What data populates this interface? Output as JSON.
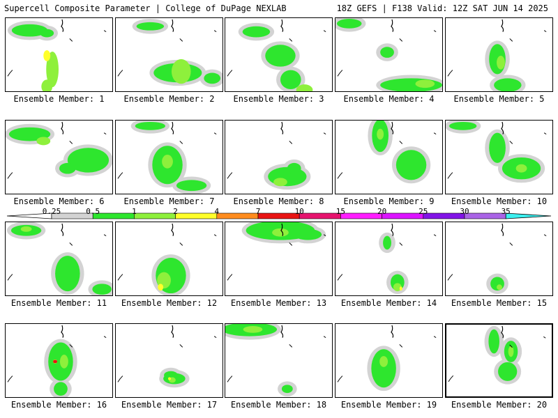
{
  "header": {
    "title_left": "Supercell Composite Parameter | College of DuPage NEXLAB",
    "title_right": "18Z GEFS | F138 Valid: 12Z SAT JUN 14 2025"
  },
  "panel_label_prefix": "Ensemble Member:",
  "members": [
    {
      "label": "Ensemble Member: 1"
    },
    {
      "label": "Ensemble Member: 2"
    },
    {
      "label": "Ensemble Member: 3"
    },
    {
      "label": "Ensemble Member: 4"
    },
    {
      "label": "Ensemble Member: 5"
    },
    {
      "label": "Ensemble Member: 6"
    },
    {
      "label": "Ensemble Member: 7"
    },
    {
      "label": "Ensemble Member: 8"
    },
    {
      "label": "Ensemble Member: 9"
    },
    {
      "label": "Ensemble Member: 10"
    },
    {
      "label": "Ensemble Member: 11"
    },
    {
      "label": "Ensemble Member: 12"
    },
    {
      "label": "Ensemble Member: 13"
    },
    {
      "label": "Ensemble Member: 14"
    },
    {
      "label": "Ensemble Member: 15"
    },
    {
      "label": "Ensemble Member: 16"
    },
    {
      "label": "Ensemble Member: 17"
    },
    {
      "label": "Ensemble Member: 18"
    },
    {
      "label": "Ensemble Member: 19"
    },
    {
      "label": "Ensemble Member: 20",
      "selected": true
    }
  ],
  "colorbar": {
    "labels": [
      "0.25",
      "0.5",
      "1",
      "2",
      "4",
      "7",
      "10",
      "15",
      "20",
      "25",
      "30",
      "35"
    ],
    "colors": [
      "#d3d3d3",
      "#2ee62e",
      "#8ef03c",
      "#ffff2a",
      "#ff8c1e",
      "#e81414",
      "#e6146e",
      "#ff1eff",
      "#dc14ff",
      "#8214e6",
      "#aa64e6",
      "#3cf0f0"
    ],
    "below_color": "#ffffff"
  }
}
